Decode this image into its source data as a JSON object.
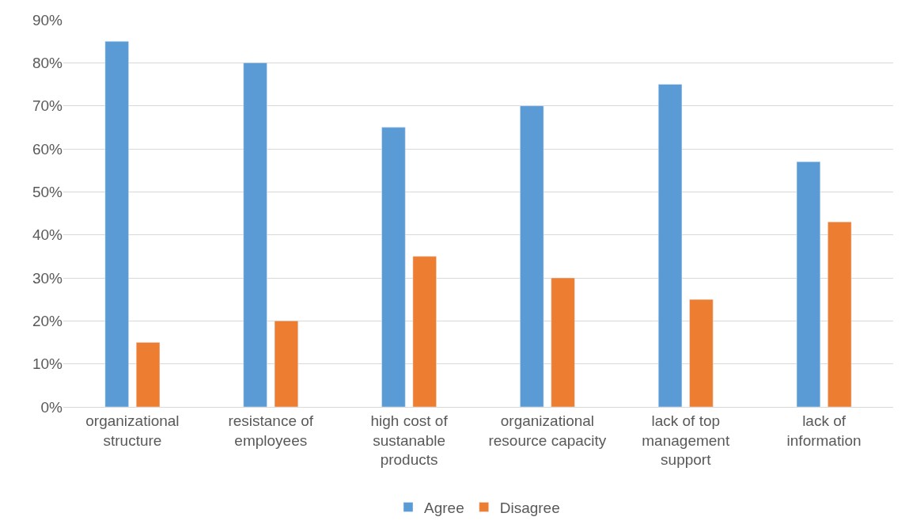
{
  "chart_data": {
    "type": "bar",
    "categories": [
      "organizational structure",
      "resistance of employees",
      "high cost of sustanable products",
      "organizational resource capacity",
      "lack of top management support",
      "lack of information"
    ],
    "series": [
      {
        "name": "Agree",
        "color": "#5b9bd5",
        "values": [
          85,
          80,
          65,
          70,
          75,
          57
        ]
      },
      {
        "name": "Disagree",
        "color": "#ed7d31",
        "values": [
          15,
          20,
          35,
          30,
          25,
          43
        ]
      }
    ],
    "ylim": [
      0,
      90
    ],
    "yticks": [
      {
        "value": 0,
        "label": "0%"
      },
      {
        "value": 10,
        "label": "10%"
      },
      {
        "value": 20,
        "label": "20%"
      },
      {
        "value": 30,
        "label": "30%"
      },
      {
        "value": 40,
        "label": "40%"
      },
      {
        "value": 50,
        "label": "50%"
      },
      {
        "value": 60,
        "label": "60%"
      },
      {
        "value": 70,
        "label": "70%"
      },
      {
        "value": 80,
        "label": "80%"
      },
      {
        "value": 90,
        "label": "90%"
      }
    ],
    "grid": "y",
    "legend": "bottom"
  }
}
